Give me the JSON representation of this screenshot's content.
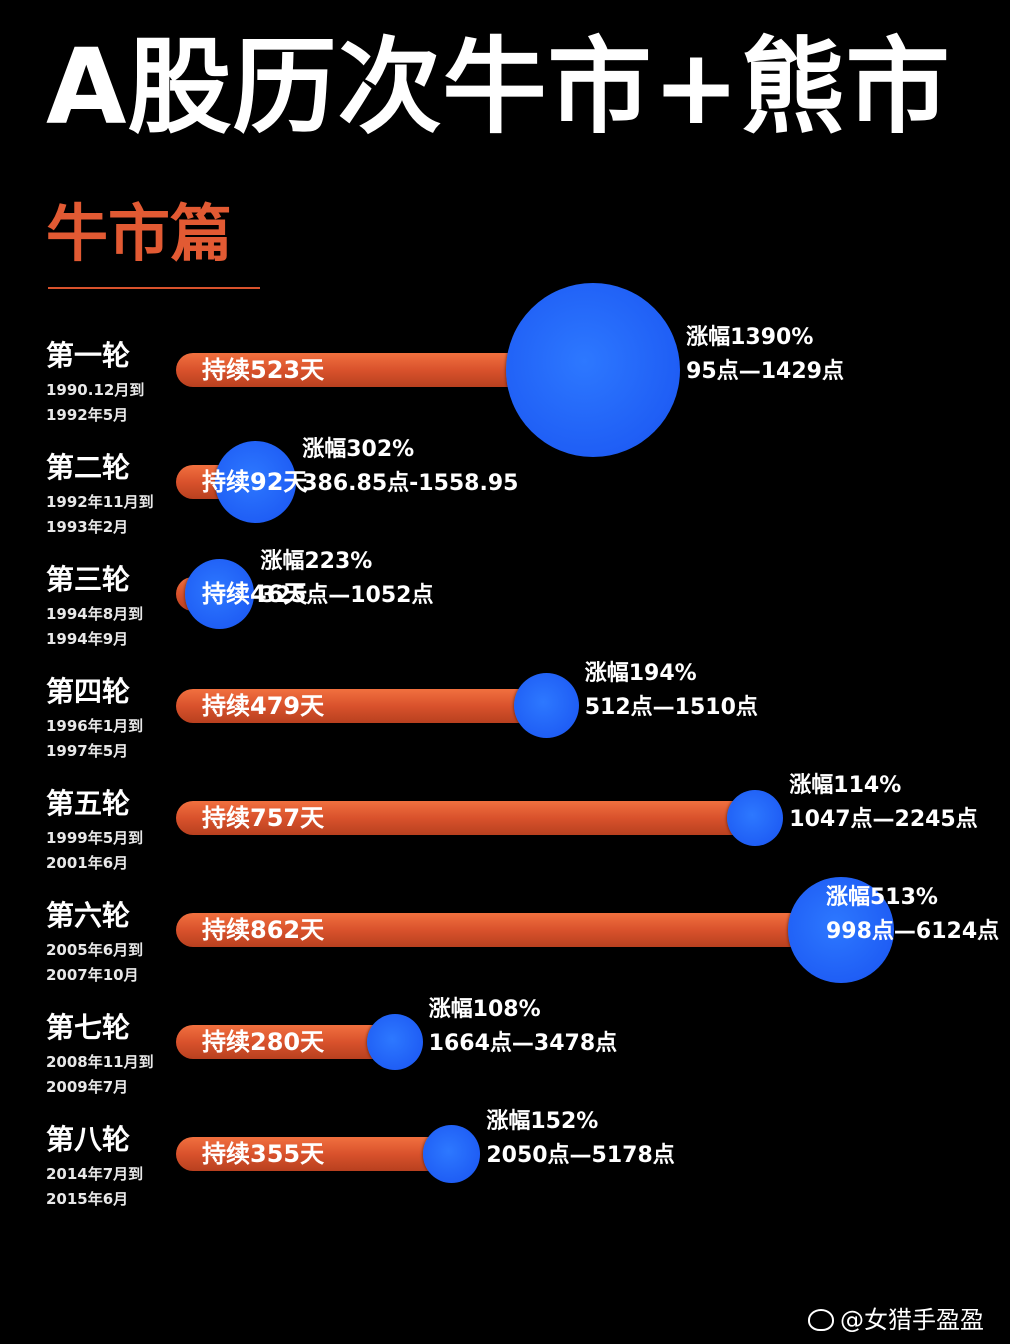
{
  "title": "A股历次牛市+熊市",
  "section": "牛市篇",
  "watermark": "@女猎手盈盈",
  "colors": {
    "background": "#000000",
    "bar": "#d9522c",
    "bubble": "#1f5ef5",
    "section": "#e25a33"
  },
  "chart_data": {
    "type": "bar",
    "title": "牛市篇",
    "rounds": [
      {
        "name": "第一轮",
        "date1": "1990.12月到",
        "date2": "1992年5月",
        "duration_label": "持续523天",
        "duration_days": 523,
        "gain_label": "涨幅1390%",
        "gain_pct": 1390,
        "range_label": "95点—1429点"
      },
      {
        "name": "第二轮",
        "date1": "1992年11月到",
        "date2": "1993年2月",
        "duration_label": "持续92天",
        "duration_days": 92,
        "gain_label": "涨幅302%",
        "gain_pct": 302,
        "range_label": "386.85点-1558.95"
      },
      {
        "name": "第三轮",
        "date1": "1994年8月到",
        "date2": "1994年9月",
        "duration_label": "持续46天",
        "duration_days": 46,
        "gain_label": "涨幅223%",
        "gain_pct": 223,
        "range_label": "325点—1052点"
      },
      {
        "name": "第四轮",
        "date1": "1996年1月到",
        "date2": "1997年5月",
        "duration_label": "持续479天",
        "duration_days": 479,
        "gain_label": "涨幅194%",
        "gain_pct": 194,
        "range_label": "512点—1510点"
      },
      {
        "name": "第五轮",
        "date1": "1999年5月到",
        "date2": "2001年6月",
        "duration_label": "持续757天",
        "duration_days": 757,
        "gain_label": "涨幅114%",
        "gain_pct": 114,
        "range_label": "1047点—2245点"
      },
      {
        "name": "第六轮",
        "date1": "2005年6月到",
        "date2": "2007年10月",
        "duration_label": "持续862天",
        "duration_days": 862,
        "gain_label": "涨幅513%",
        "gain_pct": 513,
        "range_label": "998点—6124点"
      },
      {
        "name": "第七轮",
        "date1": "2008年11月到",
        "date2": "2009年7月",
        "duration_label": "持续280天",
        "duration_days": 280,
        "gain_label": "涨幅108%",
        "gain_pct": 108,
        "range_label": "1664点—3478点"
      },
      {
        "name": "第八轮",
        "date1": "2014年7月到",
        "date2": "2015年6月",
        "duration_label": "持续355天",
        "duration_days": 355,
        "gain_label": "涨幅152%",
        "gain_pct": 152,
        "range_label": "2050点—5178点"
      }
    ]
  }
}
